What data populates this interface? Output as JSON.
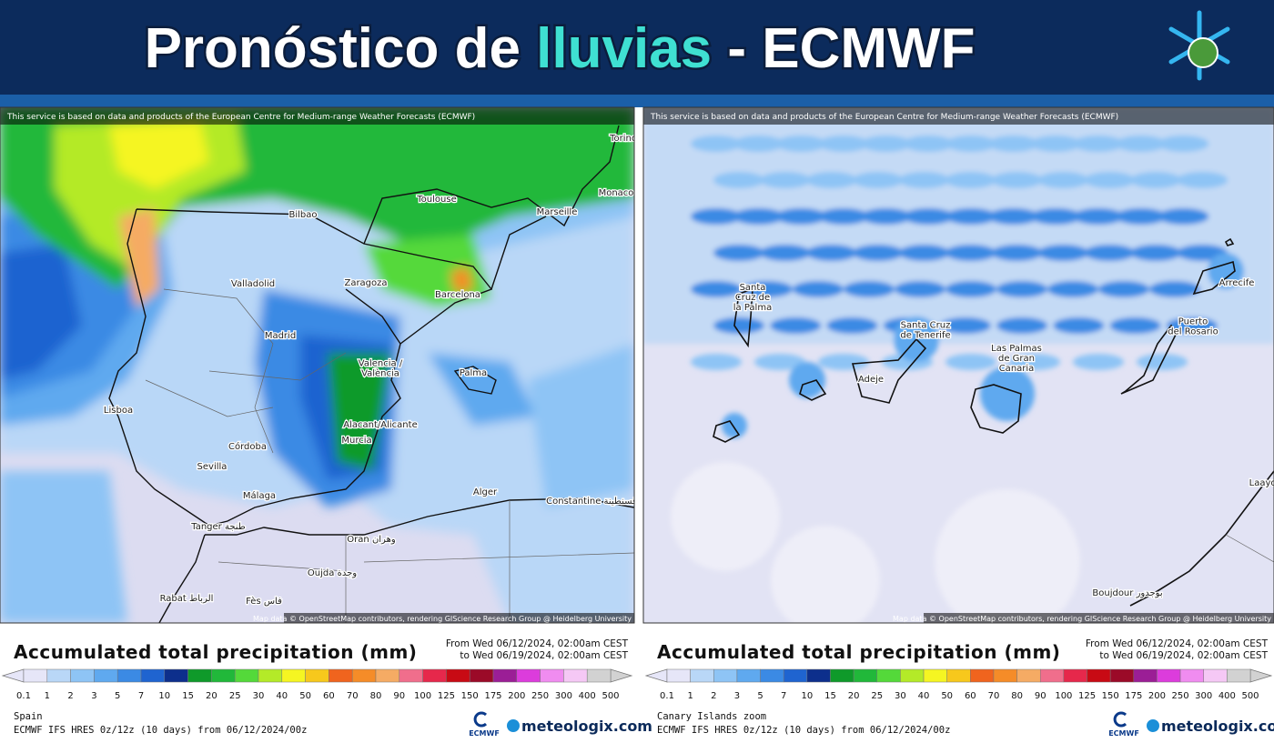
{
  "header": {
    "title_prefix": "Pronóstico de ",
    "title_highlight": "lluvias",
    "title_suffix": " - ECMWF"
  },
  "panels": [
    {
      "disclaimer": "This service is based on data and products of the European Centre for Medium-range Weather Forecasts (ECMWF)",
      "attribution": "Map data © OpenStreetMap contributors, rendering GIScience Research Group @ Heidelberg University",
      "cities": [
        {
          "lines": [
            "Torino"
          ]
        },
        {
          "lines": [
            "Monaco"
          ]
        },
        {
          "lines": [
            "Toulouse"
          ]
        },
        {
          "lines": [
            "Marseille"
          ]
        },
        {
          "lines": [
            "Bilbao"
          ]
        },
        {
          "lines": [
            "Valladolid"
          ]
        },
        {
          "lines": [
            "Zaragoza"
          ]
        },
        {
          "lines": [
            "Barcelona"
          ]
        },
        {
          "lines": [
            "Madrid"
          ]
        },
        {
          "lines": [
            "Valencia /",
            "València"
          ]
        },
        {
          "lines": [
            "Palma"
          ]
        },
        {
          "lines": [
            "Lisboa"
          ]
        },
        {
          "lines": [
            "Alacant/Alicante"
          ]
        },
        {
          "lines": [
            "Murcia"
          ]
        },
        {
          "lines": [
            "Córdoba"
          ]
        },
        {
          "lines": [
            "Sevilla"
          ]
        },
        {
          "lines": [
            "Málaga"
          ]
        },
        {
          "lines": [
            "Alger"
          ]
        },
        {
          "lines": [
            "Constantine قسنطينة"
          ]
        },
        {
          "lines": [
            "Tanger طنجة"
          ]
        },
        {
          "lines": [
            "Oran وهران"
          ]
        },
        {
          "lines": [
            "Oujda وجدة"
          ]
        },
        {
          "lines": [
            "Rabat الرباط"
          ]
        },
        {
          "lines": [
            "Fès فاس"
          ]
        }
      ],
      "legend": {
        "title": "Accumulated total precipitation (mm)",
        "period": [
          "From Wed 06/12/2024, 02:00am CEST",
          "to Wed 06/19/2024, 02:00am CEST"
        ],
        "levels": [
          0.1,
          1,
          2,
          3,
          5,
          7,
          10,
          15,
          20,
          25,
          30,
          40,
          50,
          60,
          70,
          80,
          90,
          100,
          125,
          150,
          175,
          200,
          250,
          300,
          400,
          500
        ],
        "colors": [
          "#e6e6f8",
          "#b9d7f7",
          "#8ec4f5",
          "#5fa9ef",
          "#3b8ae4",
          "#1f64d0",
          "#0d2f8c",
          "#0f9a2a",
          "#21b83a",
          "#54d93a",
          "#b4ea28",
          "#f5f522",
          "#f7c81c",
          "#f0641e",
          "#f58c28",
          "#f5ab64",
          "#f06e8c",
          "#e6284b",
          "#c80a14",
          "#9b0a28",
          "#9b1e96",
          "#dc3cdc",
          "#f08cf0",
          "#f5c8f5",
          "#d2d2d2"
        ]
      },
      "region": "Spain",
      "model": "ECMWF IFS HRES 0z/12z (10 days) from  06/12/2024/00z",
      "logo": "ECMWF",
      "brand": "meteologix.com"
    },
    {
      "disclaimer": "This service is based on data and products of the European Centre for Medium-range Weather Forecasts (ECMWF)",
      "attribution": "Map data © OpenStreetMap contributors, rendering GIScience Research Group @ Heidelberg University",
      "cities": [
        {
          "lines": [
            "Santa",
            "Cruz de",
            "la Palma"
          ]
        },
        {
          "lines": [
            "Santa Cruz",
            "de Tenerife"
          ]
        },
        {
          "lines": [
            "Adeje"
          ]
        },
        {
          "lines": [
            "Las Palmas",
            "de Gran",
            "Canaria"
          ]
        },
        {
          "lines": [
            "Puerto",
            "del Rosario"
          ]
        },
        {
          "lines": [
            "Arrecife"
          ]
        },
        {
          "lines": [
            "Laayoune"
          ]
        },
        {
          "lines": [
            "Boujdour بوجدور"
          ]
        }
      ],
      "legend": {
        "title": "Accumulated total precipitation (mm)",
        "period": [
          "From Wed 06/12/2024, 02:00am CEST",
          "to Wed 06/19/2024, 02:00am CEST"
        ],
        "levels": [
          0.1,
          1,
          2,
          3,
          5,
          7,
          10,
          15,
          20,
          25,
          30,
          40,
          50,
          60,
          70,
          80,
          90,
          100,
          125,
          150,
          175,
          200,
          250,
          300,
          400,
          500
        ],
        "colors": [
          "#e6e6f8",
          "#b9d7f7",
          "#8ec4f5",
          "#5fa9ef",
          "#3b8ae4",
          "#1f64d0",
          "#0d2f8c",
          "#0f9a2a",
          "#21b83a",
          "#54d93a",
          "#b4ea28",
          "#f5f522",
          "#f7c81c",
          "#f0641e",
          "#f58c28",
          "#f5ab64",
          "#f06e8c",
          "#e6284b",
          "#c80a14",
          "#9b0a28",
          "#9b1e96",
          "#dc3cdc",
          "#f08cf0",
          "#f5c8f5",
          "#d2d2d2"
        ]
      },
      "region": "Canary Islands zoom",
      "model": "ECMWF IFS HRES 0z/12z (10 days) from  06/12/2024/00z",
      "logo": "ECMWF",
      "brand": "meteologix.com"
    }
  ]
}
